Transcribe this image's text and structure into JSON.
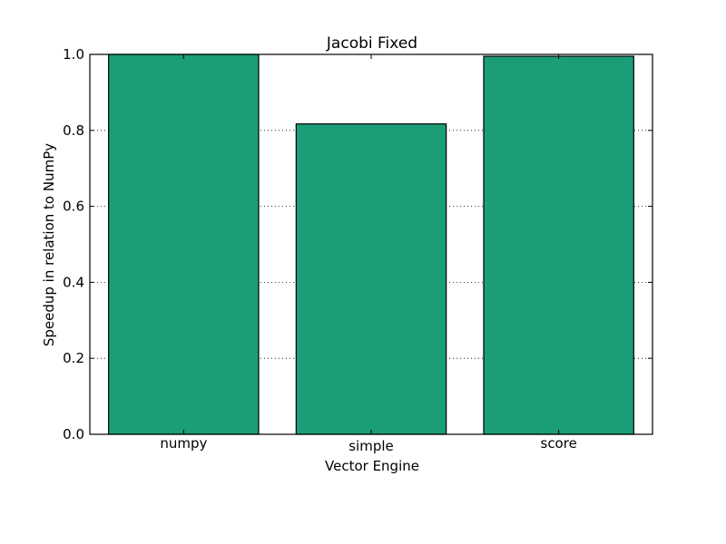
{
  "chart_data": {
    "type": "bar",
    "title": "Jacobi Fixed",
    "xlabel": "Vector Engine",
    "ylabel": "Speedup in relation to NumPy",
    "categories": [
      "numpy",
      "simple",
      "score"
    ],
    "values": [
      1.0,
      0.817,
      0.995
    ],
    "ylim": [
      0.0,
      1.0
    ],
    "yticks": [
      "0.0",
      "0.2",
      "0.4",
      "0.6",
      "0.8",
      "1.0"
    ],
    "grid": true,
    "bar_color": "#1b9e77"
  }
}
